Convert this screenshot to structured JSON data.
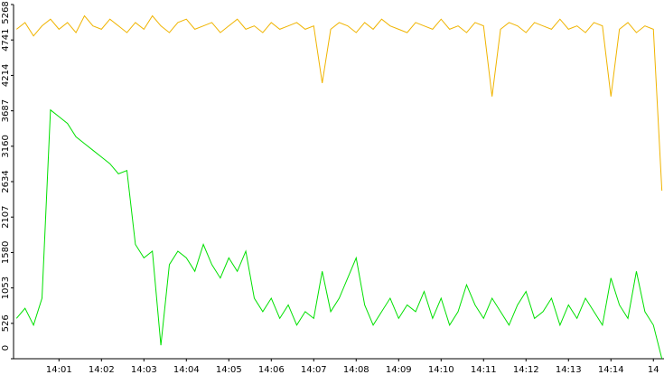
{
  "chart_data": {
    "type": "line",
    "x": [
      0,
      0.2,
      0.4,
      0.6,
      0.8,
      1,
      1.2,
      1.4,
      1.6,
      1.8,
      2,
      2.2,
      2.4,
      2.6,
      2.8,
      3,
      3.2,
      3.4,
      3.6,
      3.8,
      4,
      4.2,
      4.4,
      4.6,
      4.8,
      5,
      5.2,
      5.4,
      5.6,
      5.8,
      6,
      6.2,
      6.4,
      6.6,
      6.8,
      7,
      7.2,
      7.4,
      7.6,
      7.8,
      8,
      8.2,
      8.4,
      8.6,
      8.8,
      9,
      9.2,
      9.4,
      9.6,
      9.8,
      10,
      10.2,
      10.4,
      10.6,
      10.8,
      11,
      11.2,
      11.4,
      11.6,
      11.8,
      12,
      12.2,
      12.4,
      12.6,
      12.8,
      13,
      13.2,
      13.4,
      13.6,
      13.8,
      14,
      14.2,
      14.4,
      14.6,
      14.8,
      15,
      15.2
    ],
    "series": [
      {
        "color": "#f0b400",
        "values": [
          4900,
          5000,
          4800,
          4950,
          5050,
          4900,
          5000,
          4850,
          5100,
          4950,
          4900,
          5050,
          4950,
          4850,
          5000,
          4900,
          5100,
          4950,
          4850,
          5000,
          5050,
          4900,
          4950,
          5000,
          4850,
          4950,
          5050,
          4900,
          4950,
          4850,
          5000,
          4900,
          4950,
          5000,
          4900,
          4950,
          4100,
          4900,
          5000,
          4950,
          4850,
          5000,
          4900,
          5050,
          4950,
          4900,
          4850,
          5000,
          4950,
          4900,
          5050,
          4900,
          4950,
          4850,
          5000,
          4950,
          3900,
          4900,
          5000,
          4950,
          4850,
          5000,
          4950,
          4900,
          5050,
          4900,
          4950,
          4850,
          5000,
          4950,
          3900,
          4900,
          5000,
          4850,
          4950,
          4900,
          2500
        ]
      },
      {
        "color": "#00e000",
        "values": [
          600,
          750,
          500,
          900,
          3700,
          3600,
          3500,
          3300,
          3200,
          3100,
          3000,
          2900,
          2750,
          2800,
          1700,
          1500,
          1600,
          200,
          1400,
          1600,
          1500,
          1300,
          1700,
          1400,
          1200,
          1500,
          1300,
          1600,
          900,
          700,
          900,
          600,
          800,
          500,
          700,
          600,
          1300,
          700,
          900,
          1200,
          1500,
          800,
          500,
          700,
          900,
          600,
          800,
          700,
          1000,
          600,
          900,
          500,
          700,
          1100,
          800,
          600,
          900,
          700,
          500,
          800,
          1000,
          600,
          700,
          900,
          500,
          800,
          600,
          900,
          700,
          500,
          1200,
          800,
          600,
          1300,
          700,
          500,
          0
        ]
      }
    ],
    "ylim": [
      0,
      5268
    ],
    "yticks": [
      0,
      526,
      1053,
      1580,
      2107,
      2634,
      3160,
      3687,
      4214,
      4741,
      5268
    ],
    "xlim": [
      -0.07,
      15.25
    ],
    "xticks": [
      {
        "value": 1,
        "label": "14:01"
      },
      {
        "value": 2,
        "label": "14:02"
      },
      {
        "value": 3,
        "label": "14:03"
      },
      {
        "value": 4,
        "label": "14:04"
      },
      {
        "value": 5,
        "label": "14:05"
      },
      {
        "value": 6,
        "label": "14:06"
      },
      {
        "value": 7,
        "label": "14:07"
      },
      {
        "value": 8,
        "label": "14:08"
      },
      {
        "value": 9,
        "label": "14:09"
      },
      {
        "value": 10,
        "label": "14:10"
      },
      {
        "value": 11,
        "label": "14:11"
      },
      {
        "value": 12,
        "label": "14:12"
      },
      {
        "value": 13,
        "label": "14:13"
      },
      {
        "value": 14,
        "label": "14:14"
      },
      {
        "value": 15,
        "label": "14"
      }
    ]
  }
}
